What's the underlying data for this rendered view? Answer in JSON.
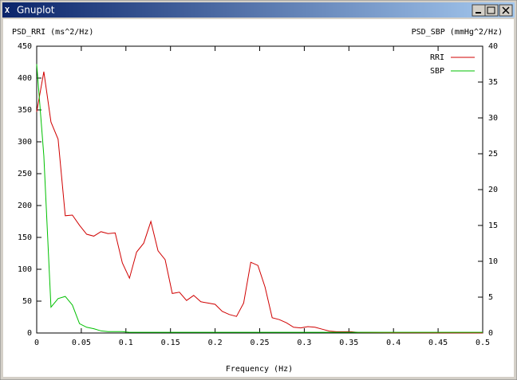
{
  "window": {
    "title": "Gnuplot"
  },
  "chart_data": {
    "type": "line",
    "ylabel": "PSD_RRI (ms^2/Hz)",
    "y2label": "PSD_SBP (mmHg^2/Hz)",
    "xlabel": "Frequency (Hz)",
    "x": [
      0,
      0.008,
      0.016,
      0.024,
      0.032,
      0.04,
      0.048,
      0.056,
      0.064,
      0.072,
      0.08,
      0.088,
      0.096,
      0.104,
      0.112,
      0.12,
      0.128,
      0.136,
      0.144,
      0.152,
      0.16,
      0.168,
      0.176,
      0.184,
      0.192,
      0.2,
      0.208,
      0.216,
      0.224,
      0.232,
      0.24,
      0.248,
      0.256,
      0.264,
      0.272,
      0.28,
      0.288,
      0.296,
      0.304,
      0.312,
      0.32,
      0.328,
      0.336,
      0.344,
      0.352,
      0.36,
      0.4,
      0.45,
      0.5
    ],
    "series": [
      {
        "name": "RRI",
        "color": "#d00000",
        "axis": "y",
        "values": [
          347,
          410,
          331,
          304,
          184,
          185,
          169,
          155,
          152,
          159,
          156,
          157,
          110,
          86,
          127,
          141,
          175,
          129,
          115,
          62,
          64,
          51,
          59,
          49,
          47,
          45,
          34,
          29,
          26,
          47,
          111,
          106,
          72,
          24,
          21,
          16,
          9,
          8,
          10,
          9,
          6,
          3,
          2,
          2,
          2,
          1,
          0.5,
          0.3,
          0.2
        ]
      },
      {
        "name": "SBP",
        "color": "#00c000",
        "axis": "y2",
        "values": [
          37.5,
          24.7,
          3.6,
          4.8,
          5.1,
          3.9,
          1.3,
          0.8,
          0.6,
          0.3,
          0.2,
          0.2,
          0.2,
          0.1,
          0.1,
          0.1,
          0.1,
          0.1,
          0.1,
          0.1,
          0.1,
          0.1,
          0.1,
          0.1,
          0.1,
          0.1,
          0.1,
          0.1,
          0.1,
          0.1,
          0.1,
          0.1,
          0.1,
          0.1,
          0.1,
          0.1,
          0.1,
          0.1,
          0.1,
          0.1,
          0.1,
          0.1,
          0.1,
          0.1,
          0.1,
          0.1,
          0.1,
          0.1,
          0.1
        ]
      }
    ],
    "xlim": [
      0,
      0.5
    ],
    "xticks": [
      0,
      0.05,
      0.1,
      0.15,
      0.2,
      0.25,
      0.3,
      0.35,
      0.4,
      0.45,
      0.5
    ],
    "ylim": [
      0,
      450
    ],
    "yticks": [
      0,
      50,
      100,
      150,
      200,
      250,
      300,
      350,
      400,
      450
    ],
    "y2lim": [
      0,
      40
    ],
    "y2ticks": [
      0,
      5,
      10,
      15,
      20,
      25,
      30,
      35,
      40
    ],
    "legend": "top right",
    "grid": false
  }
}
